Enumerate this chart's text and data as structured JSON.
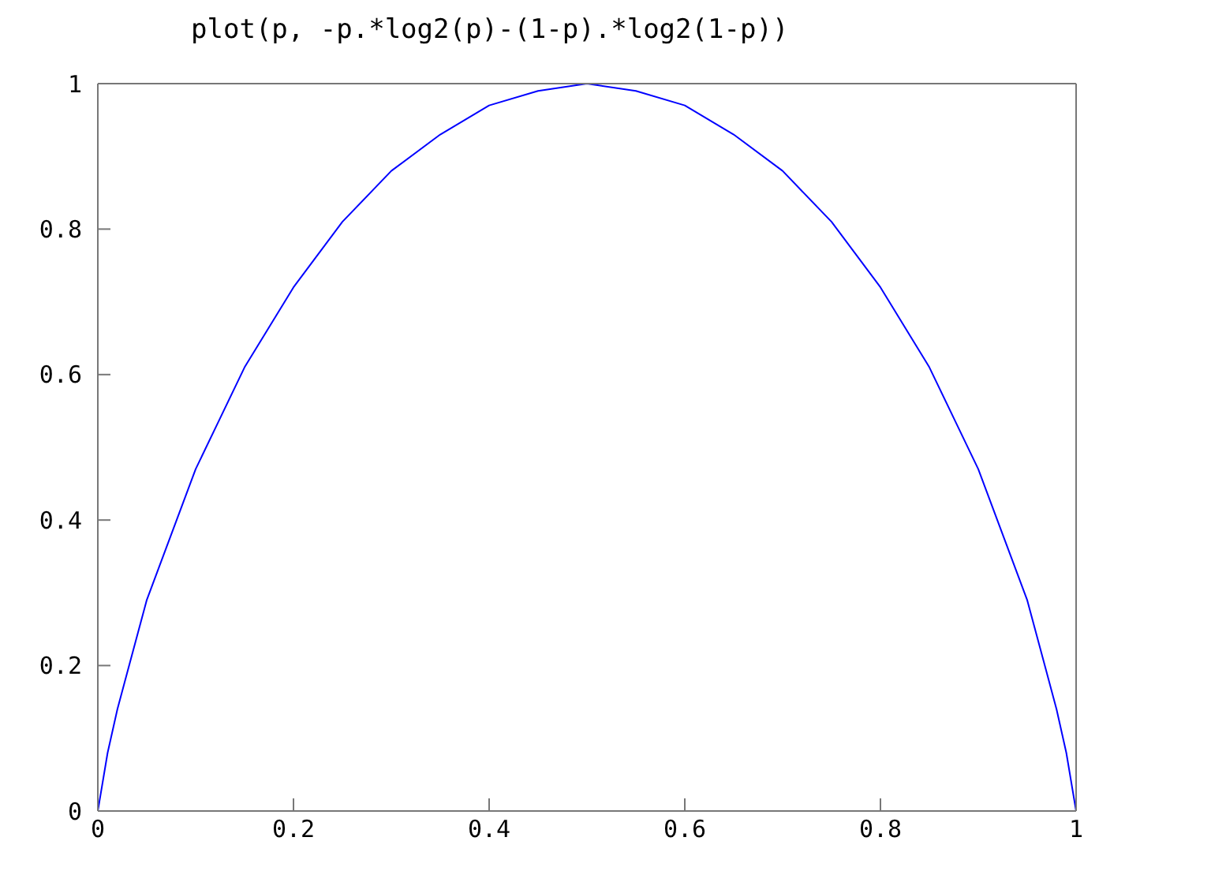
{
  "chart_data": {
    "type": "line",
    "title": "plot(p, -p.*log2(p)-(1-p).*log2(1-p))",
    "x": [
      0,
      0.01,
      0.02,
      0.03,
      0.05,
      0.075,
      0.1,
      0.125,
      0.15,
      0.2,
      0.25,
      0.3,
      0.35,
      0.4,
      0.45,
      0.5,
      0.55,
      0.6,
      0.65,
      0.7,
      0.75,
      0.8,
      0.85,
      0.875,
      0.9,
      0.925,
      0.95,
      0.97,
      0.98,
      0.99,
      1
    ],
    "series": [
      {
        "color": "#0000ff",
        "values": [
          0,
          0.08,
          0.14,
          0.19,
          0.29,
          0.38,
          0.47,
          0.54,
          0.61,
          0.72,
          0.81,
          0.88,
          0.93,
          0.97,
          0.99,
          1,
          0.99,
          0.97,
          0.93,
          0.88,
          0.81,
          0.72,
          0.61,
          0.54,
          0.47,
          0.38,
          0.29,
          0.19,
          0.14,
          0.08,
          0
        ]
      }
    ],
    "xlim": [
      0,
      1
    ],
    "ylim": [
      0,
      1
    ],
    "xticks": [
      0,
      0.2,
      0.4,
      0.6,
      0.8,
      1
    ],
    "yticks": [
      0,
      0.2,
      0.4,
      0.6,
      0.8,
      1
    ],
    "grid": false,
    "marker": "none",
    "line_style": "solid"
  }
}
